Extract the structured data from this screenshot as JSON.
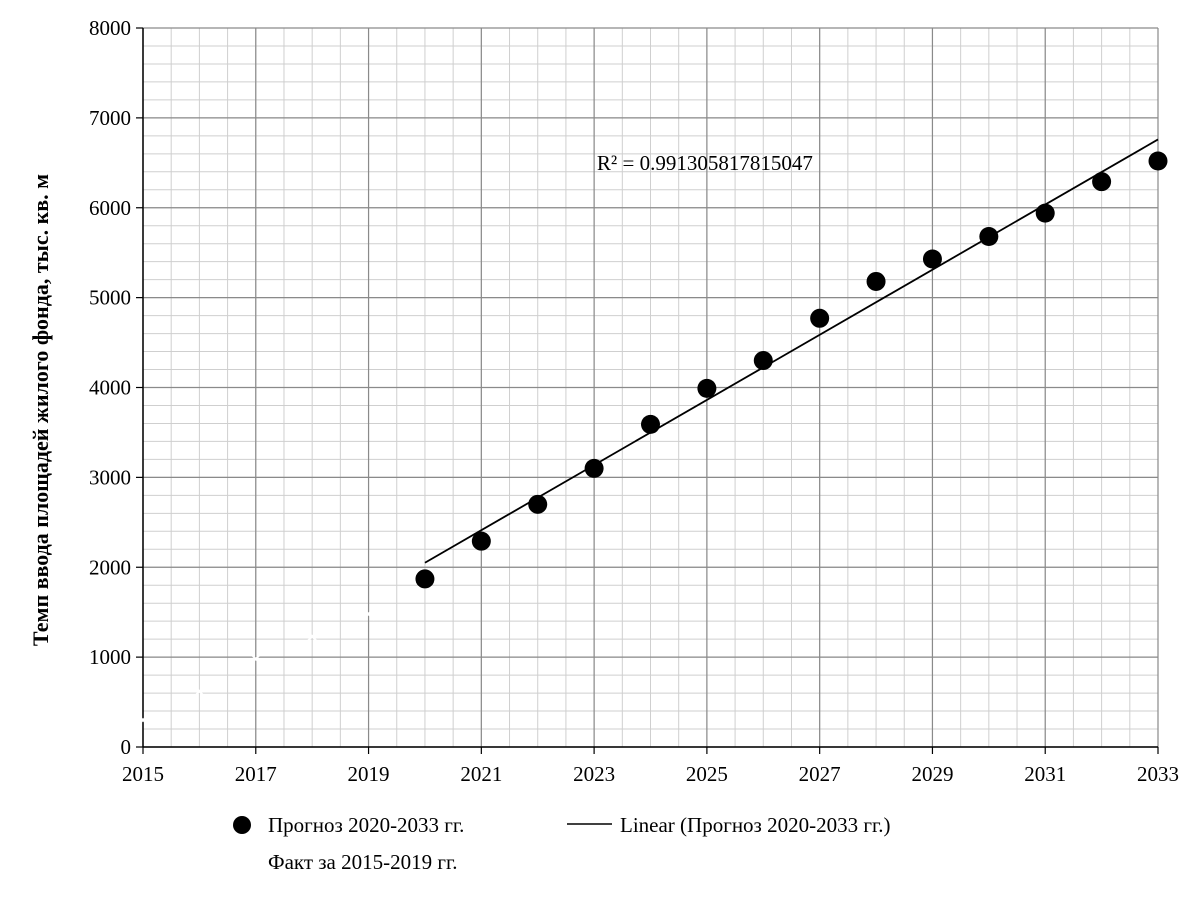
{
  "chart_data": {
    "type": "scatter",
    "title": "",
    "xlabel": "",
    "ylabel": "Темп ввода площадей жилого фонда, тыс. кв. м",
    "xlim": [
      2015,
      2033
    ],
    "ylim": [
      0,
      8000
    ],
    "x_ticks": [
      "2015",
      "2017",
      "2019",
      "2021",
      "2023",
      "2025",
      "2027",
      "2029",
      "2031",
      "2033"
    ],
    "y_ticks": [
      "0",
      "1000",
      "2000",
      "3000",
      "4000",
      "5000",
      "6000",
      "7000",
      "8000"
    ],
    "grid": true,
    "series": [
      {
        "name": "Прогноз 2020-2033 гг.",
        "marker": "filled-circle",
        "color": "#000000",
        "x": [
          2020,
          2021,
          2022,
          2023,
          2024,
          2025,
          2026,
          2027,
          2028,
          2029,
          2030,
          2031,
          2032,
          2033
        ],
        "y": [
          1870,
          2290,
          2700,
          3100,
          3590,
          3990,
          4300,
          4770,
          5180,
          5430,
          5680,
          5940,
          6290,
          6520
        ]
      },
      {
        "name": "Linear (Прогноз 2020-2033 гг.)",
        "type": "line",
        "color": "#000000",
        "x": [
          2020,
          2033
        ],
        "y": [
          2050,
          6760
        ]
      },
      {
        "name": "Факт за 2015-2019 гг.",
        "marker": "x",
        "color": "#ffffff",
        "x": [
          2015,
          2016,
          2017,
          2018,
          2019
        ],
        "y": [
          300,
          620,
          980,
          1230,
          1480
        ]
      }
    ],
    "annotations": [
      {
        "text": "R² = 0.991305817815047",
        "x": 2025,
        "y": 6500
      }
    ],
    "legend": {
      "placement": "bottom",
      "entries": [
        "Прогноз 2020-2033 гг.",
        "Linear (Прогноз 2020-2033 гг.)",
        "Факт за 2015-2019 гг."
      ]
    }
  }
}
